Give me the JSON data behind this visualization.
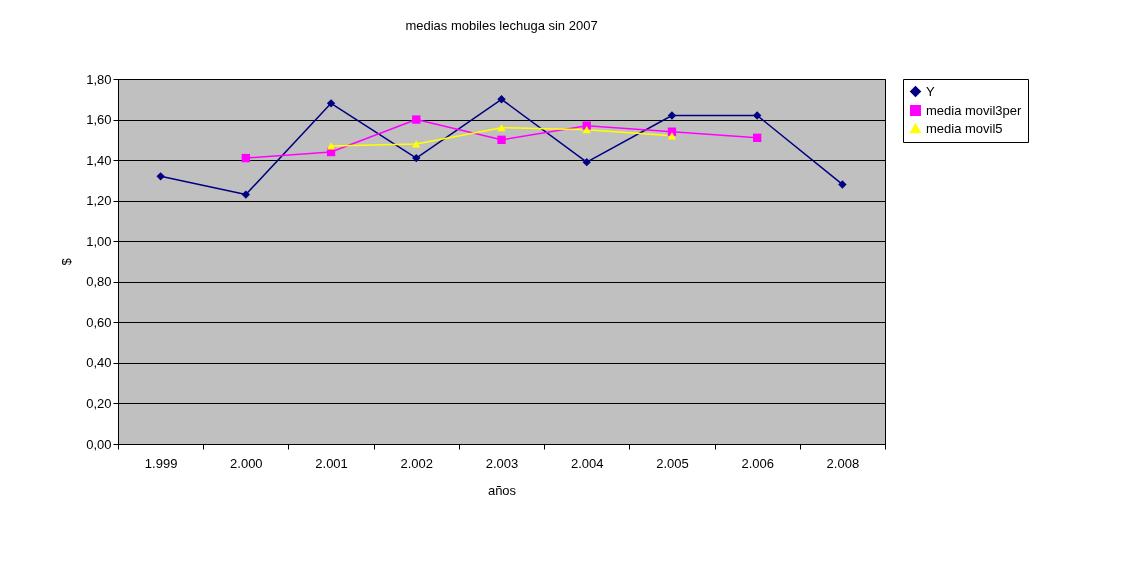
{
  "chart_data": {
    "type": "line",
    "title": "medias mobiles lechuga sin 2007",
    "xlabel": "años",
    "ylabel": "$",
    "categories": [
      "1.999",
      "2.000",
      "2.001",
      "2.002",
      "2.003",
      "2.004",
      "2.005",
      "2.006",
      "2.008"
    ],
    "series": [
      {
        "name": "Y",
        "color": "#000080",
        "marker": "diamond",
        "values": [
          1.32,
          1.23,
          1.68,
          1.41,
          1.7,
          1.39,
          1.62,
          1.62,
          1.28
        ]
      },
      {
        "name": "media movil3per",
        "color": "#ff00ff",
        "marker": "square",
        "values": [
          null,
          1.41,
          1.44,
          1.6,
          1.5,
          1.57,
          1.54,
          1.51,
          null
        ]
      },
      {
        "name": "media movil5",
        "color": "#ffff00",
        "marker": "triangle",
        "values": [
          null,
          null,
          1.47,
          1.48,
          1.56,
          1.55,
          1.52,
          null,
          null
        ]
      }
    ],
    "ylim": [
      0,
      1.8
    ],
    "yticks": [
      {
        "value": 0,
        "label": "0,00"
      },
      {
        "value": 0.2,
        "label": "0,20"
      },
      {
        "value": 0.4,
        "label": "0,40"
      },
      {
        "value": 0.6,
        "label": "0,60"
      },
      {
        "value": 0.8,
        "label": "0,80"
      },
      {
        "value": 1.0,
        "label": "1,00"
      },
      {
        "value": 1.2,
        "label": "1,20"
      },
      {
        "value": 1.4,
        "label": "1,40"
      },
      {
        "value": 1.6,
        "label": "1,60"
      },
      {
        "value": 1.8,
        "label": "1,80"
      }
    ],
    "grid": "y",
    "legend": "right",
    "line_style": "solid"
  }
}
